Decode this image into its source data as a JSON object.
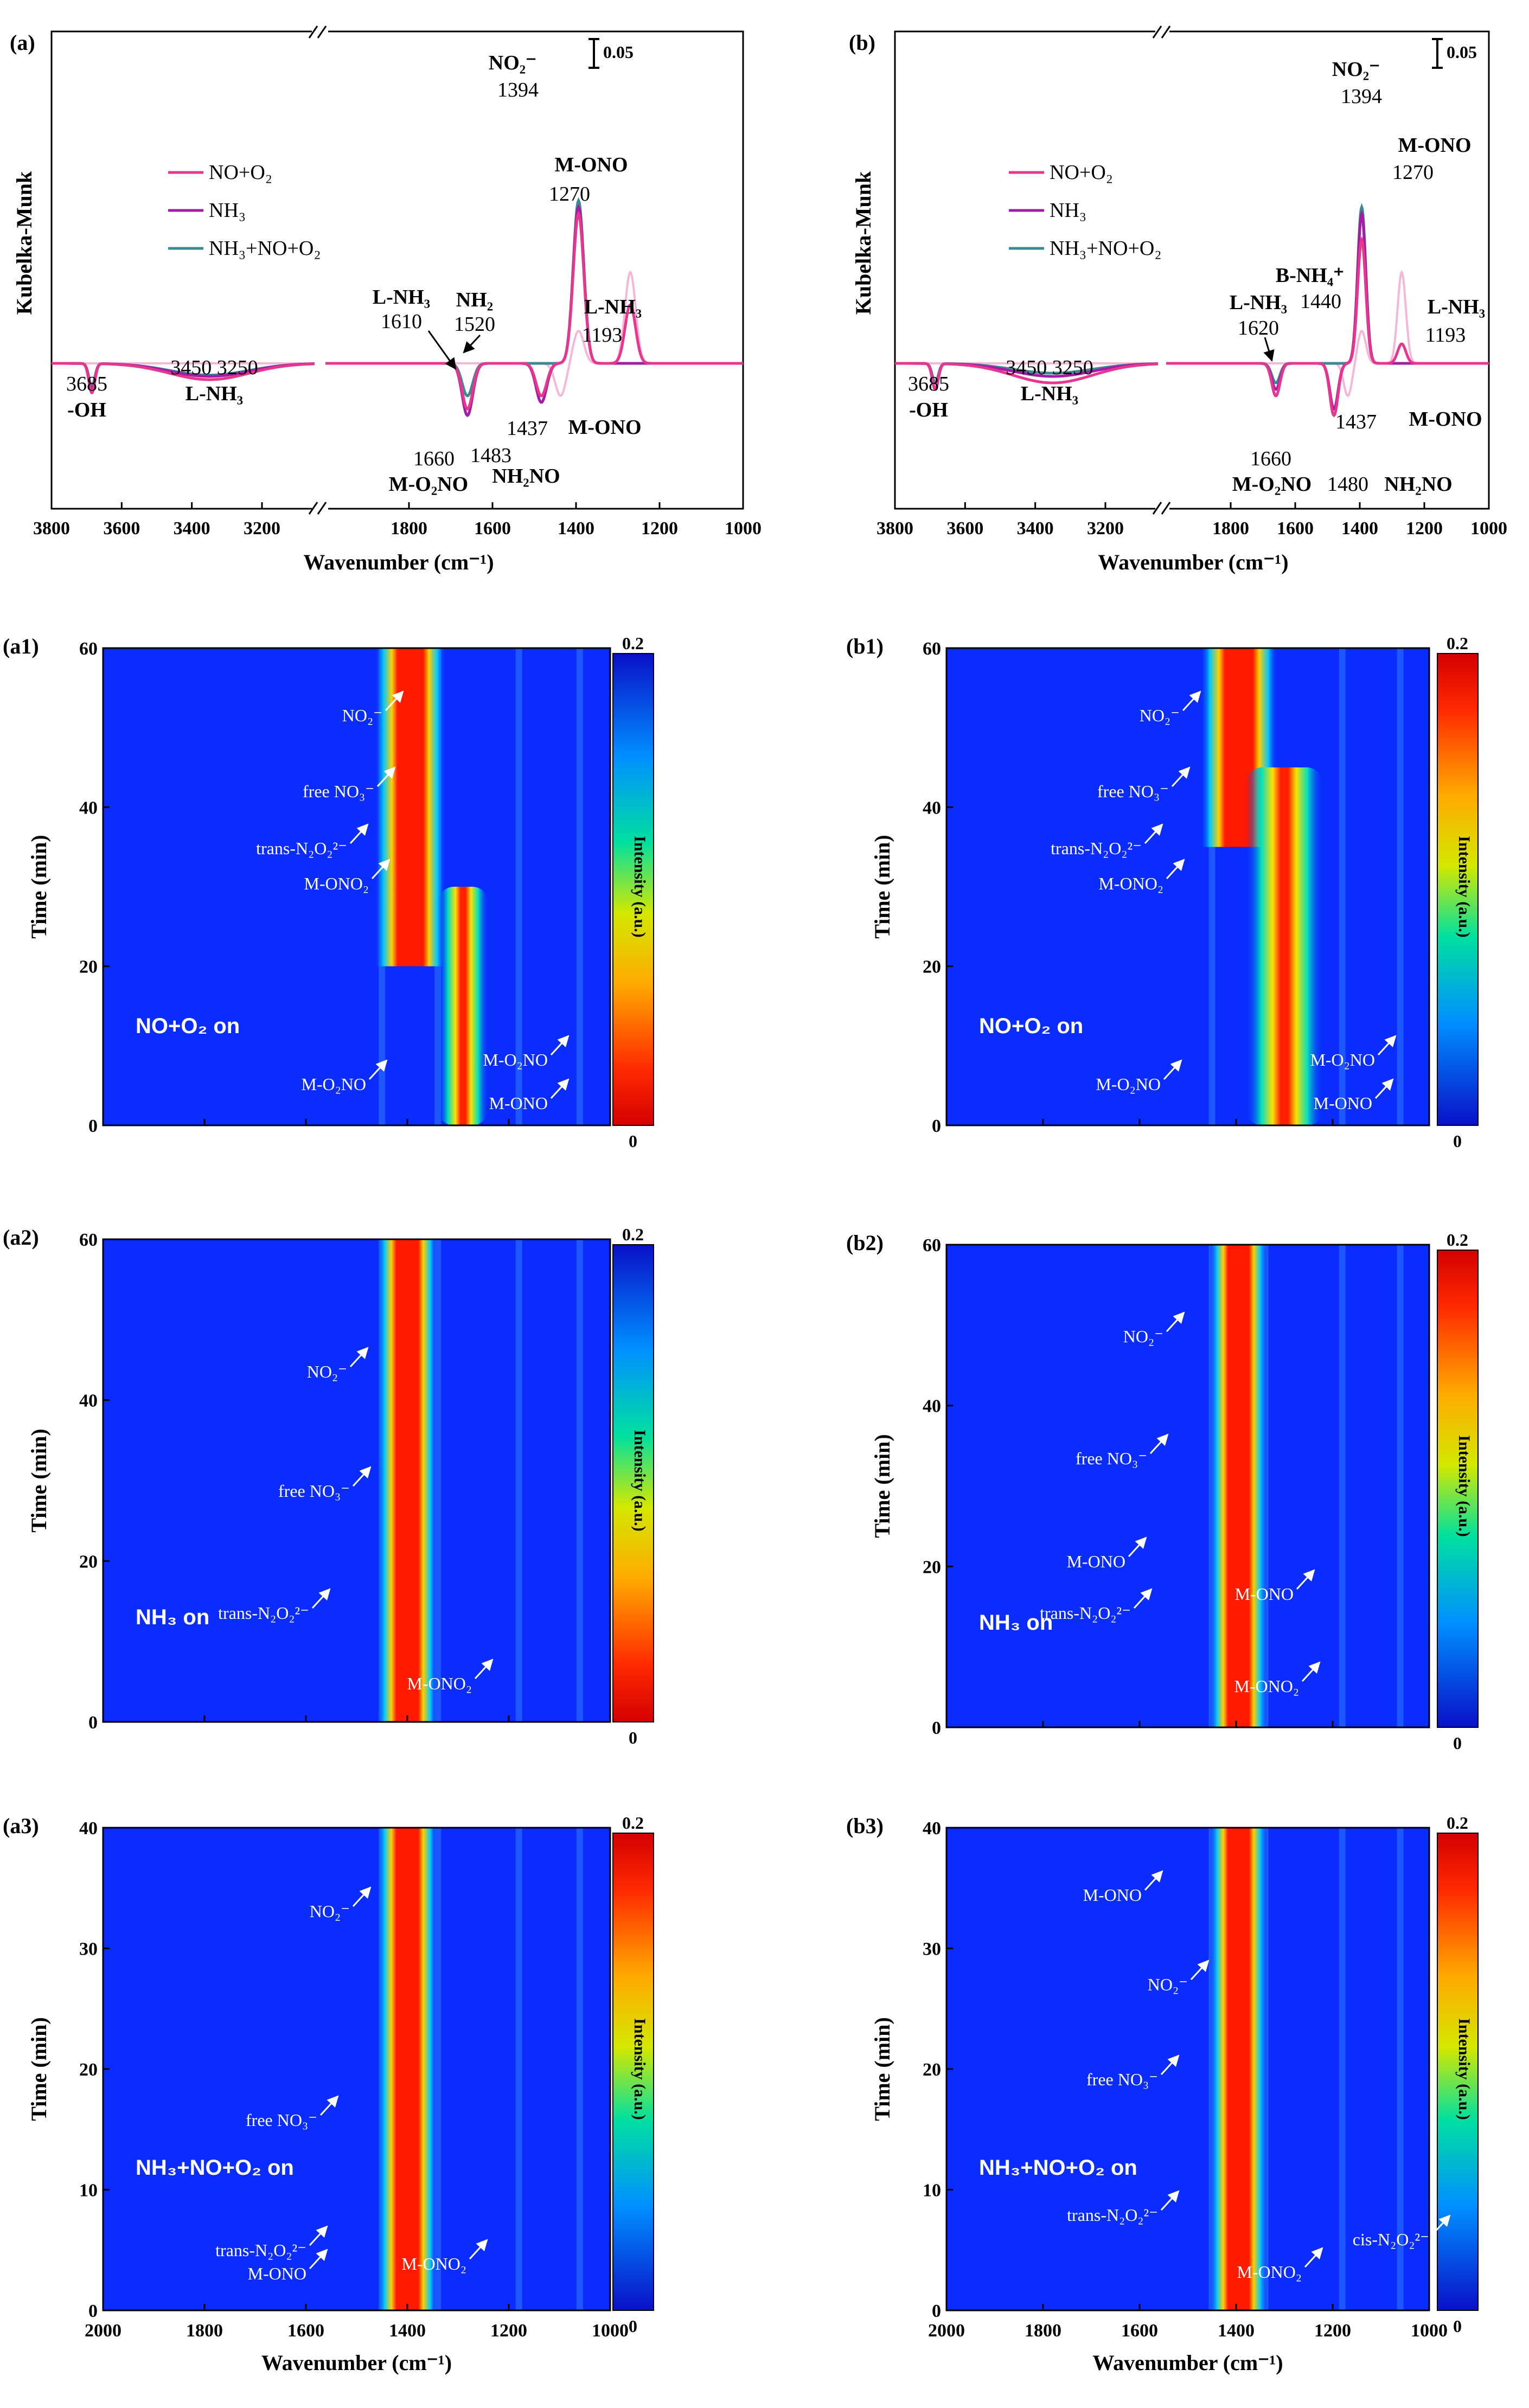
{
  "colors": {
    "no_o2": "#e8358e",
    "nh3": "#a51aa6",
    "nh3_no_o2": "#3a8a94",
    "pale": "#f6b7d6",
    "arrow": "#ffffff",
    "scalebar": "#000000"
  },
  "chart_data": [
    {
      "id": "a",
      "panel_label": "(a)",
      "type": "line",
      "xlabel": "Wavenumber (cm⁻¹)",
      "ylabel": "Kubelka-Munk",
      "x_ticks": [
        "3800",
        "3600",
        "3400",
        "3200",
        "1800",
        "1600",
        "1400",
        "1200",
        "1000"
      ],
      "x_segments": [
        [
          3800,
          3050
        ],
        [
          2000,
          1000
        ]
      ],
      "scale_label": "0.05",
      "legend": [
        "NO+O₂",
        "NH₃",
        "NH₃+NO+O₂"
      ],
      "series": [
        {
          "name": "NO+O₂",
          "color": "#e8358e",
          "peaks": [
            [
              3685,
              -0.045
            ],
            [
              3350,
              -0.025
            ],
            [
              1660,
              -0.07
            ],
            [
              1483,
              -0.05
            ],
            [
              1394,
              0.23
            ],
            [
              1270,
              0.09
            ]
          ]
        },
        {
          "name": "NH₃",
          "color": "#a51aa6",
          "peaks": [
            [
              3685,
              -0.04
            ],
            [
              3350,
              -0.02
            ],
            [
              1660,
              -0.08
            ],
            [
              1483,
              -0.06
            ],
            [
              1394,
              0.24
            ]
          ]
        },
        {
          "name": "NH₃+NO+O₂",
          "color": "#3a8a94",
          "peaks": [
            [
              3685,
              -0.035
            ],
            [
              3350,
              -0.018
            ],
            [
              1660,
              -0.05
            ],
            [
              1394,
              0.25
            ]
          ]
        }
      ],
      "annotations": [
        {
          "text": "NO₂⁻",
          "sub": "1394"
        },
        {
          "text": "M-ONO",
          "sub": "1270"
        },
        {
          "text": "L-NH₃",
          "sub": "1610"
        },
        {
          "text": "NH₂",
          "sub": "1520"
        },
        {
          "text": "L-NH₃",
          "sub": "1193"
        },
        {
          "text": "3685",
          "sub": "-OH"
        },
        {
          "text": "3450 3250",
          "sub": "L-NH₃"
        },
        {
          "text": "1660",
          "sub": "M-O₂NO"
        },
        {
          "text": "1483",
          "sub": ""
        },
        {
          "text": "1437",
          "sub": "NH₂NO"
        },
        {
          "text": "M-ONO",
          "sub": ""
        }
      ]
    },
    {
      "id": "b",
      "panel_label": "(b)",
      "type": "line",
      "xlabel": "Wavenumber (cm⁻¹)",
      "ylabel": "Kubelka-Munk",
      "x_ticks": [
        "3800",
        "3600",
        "3400",
        "3200",
        "1800",
        "1600",
        "1400",
        "1200",
        "1000"
      ],
      "x_segments": [
        [
          3800,
          3050
        ],
        [
          2000,
          1000
        ]
      ],
      "scale_label": "0.05",
      "legend": [
        "NO+O₂",
        "NH₃",
        "NH₃+NO+O₂"
      ],
      "series": [
        {
          "name": "NO+O₂",
          "color": "#e8358e",
          "peaks": [
            [
              3685,
              -0.04
            ],
            [
              3350,
              -0.03
            ],
            [
              1660,
              -0.05
            ],
            [
              1480,
              -0.08
            ],
            [
              1394,
              0.19
            ],
            [
              1270,
              0.03
            ]
          ]
        },
        {
          "name": "NH₃",
          "color": "#a51aa6",
          "peaks": [
            [
              3685,
              -0.04
            ],
            [
              3350,
              -0.02
            ],
            [
              1660,
              -0.04
            ],
            [
              1480,
              -0.07
            ],
            [
              1394,
              0.23
            ]
          ]
        },
        {
          "name": "NH₃+NO+O₂",
          "color": "#3a8a94",
          "peaks": [
            [
              3685,
              -0.03
            ],
            [
              3350,
              -0.015
            ],
            [
              1660,
              -0.03
            ],
            [
              1394,
              0.24
            ]
          ]
        }
      ],
      "annotations": [
        {
          "text": "NO₂⁻",
          "sub": "1394"
        },
        {
          "text": "M-ONO",
          "sub": "1270"
        },
        {
          "text": "B-NH₄⁺",
          "sub": "1440"
        },
        {
          "text": "L-NH₃",
          "sub": "1620"
        },
        {
          "text": "L-NH₃",
          "sub": "1193"
        },
        {
          "text": "3685",
          "sub": "-OH"
        },
        {
          "text": "3450 3250",
          "sub": "L-NH₃"
        },
        {
          "text": "1660",
          "sub": "M-O₂NO"
        },
        {
          "text": "1480",
          "sub": "NH₂NO"
        },
        {
          "text": "1437",
          "sub": "M-ONO"
        }
      ]
    },
    {
      "id": "a1",
      "panel_label": "(a1)",
      "type": "heatmap",
      "xlim": [
        2000,
        1000
      ],
      "ylim": [
        0,
        60
      ],
      "y_ticks": [
        "0",
        "20",
        "40",
        "60"
      ],
      "xlabel": "",
      "ylabel": "Time (min)",
      "colorbar_label": "Intensity (a.u.)",
      "colorbar_range": [
        "0",
        "0.2"
      ],
      "colorbar_reversed": true,
      "condition": "NO+O₂ on",
      "bands": [
        {
          "center": 1394,
          "width": 70,
          "t": [
            20,
            60
          ]
        },
        {
          "center": 1290,
          "width": 50,
          "t": [
            0,
            30
          ]
        }
      ],
      "annotations": [
        "NO₂⁻",
        "free NO₃⁻",
        "trans-N₂O₂²⁻",
        "M-ONO₂",
        "M-O₂NO",
        "M-O₂NO",
        "M-ONO"
      ]
    },
    {
      "id": "b1",
      "panel_label": "(b1)",
      "type": "heatmap",
      "xlim": [
        2000,
        1000
      ],
      "ylim": [
        0,
        60
      ],
      "y_ticks": [
        "0",
        "20",
        "40",
        "60"
      ],
      "xlabel": "",
      "ylabel": "Time (min)",
      "colorbar_label": "Intensity (a.u.)",
      "colorbar_range": [
        "0",
        "0.2"
      ],
      "colorbar_reversed": false,
      "condition": "NO+O₂ on",
      "bands": [
        {
          "center": 1394,
          "width": 80,
          "t": [
            35,
            60
          ]
        },
        {
          "center": 1300,
          "width": 80,
          "t": [
            0,
            45
          ]
        }
      ],
      "annotations": [
        "NO₂⁻",
        "free NO₃⁻",
        "trans-N₂O₂²⁻",
        "M-ONO₂",
        "M-O₂NO",
        "M-O₂NO",
        "M-ONO"
      ]
    },
    {
      "id": "a2",
      "panel_label": "(a2)",
      "type": "heatmap",
      "xlim": [
        2000,
        1000
      ],
      "ylim": [
        0,
        60
      ],
      "y_ticks": [
        "0",
        "20",
        "40",
        "60"
      ],
      "xlabel": "",
      "ylabel": "Time (min)",
      "colorbar_label": "Intensity (a.u.)",
      "colorbar_range": [
        "0",
        "0.2"
      ],
      "colorbar_reversed": true,
      "condition": "NH₃ on",
      "bands": [
        {
          "center": 1400,
          "width": 60,
          "t": [
            0,
            60
          ]
        }
      ],
      "annotations": [
        "NO₂⁻",
        "free NO₃⁻",
        "trans-N₂O₂²⁻",
        "M-ONO₂"
      ]
    },
    {
      "id": "b2",
      "panel_label": "(b2)",
      "type": "heatmap",
      "xlim": [
        2000,
        1000
      ],
      "ylim": [
        0,
        60
      ],
      "y_ticks": [
        "0",
        "20",
        "40",
        "60"
      ],
      "xlabel": "",
      "ylabel": "Time (min)",
      "colorbar_label": "Intensity (a.u.)",
      "colorbar_range": [
        "0",
        "0.2"
      ],
      "colorbar_reversed": false,
      "condition": "NH₃ on",
      "bands": [
        {
          "center": 1395,
          "width": 60,
          "t": [
            0,
            60
          ]
        }
      ],
      "annotations": [
        "NO₂⁻",
        "free NO₃⁻",
        "M-ONO",
        "trans-N₂O₂²⁻",
        "M-ONO",
        "M-ONO₂"
      ]
    },
    {
      "id": "a3",
      "panel_label": "(a3)",
      "type": "heatmap",
      "xlim": [
        2000,
        1000
      ],
      "ylim": [
        0,
        40
      ],
      "y_ticks": [
        "0",
        "10",
        "20",
        "30",
        "40"
      ],
      "xlabel": "Wavenumber (cm⁻¹)",
      "ylabel": "Time (min)",
      "colorbar_label": "Intensity (a.u.)",
      "colorbar_range": [
        "0",
        "0.2"
      ],
      "colorbar_reversed": false,
      "condition": "NH₃+NO+O₂ on",
      "bands": [
        {
          "center": 1400,
          "width": 60,
          "t": [
            0,
            40
          ]
        }
      ],
      "annotations": [
        "NO₂⁻",
        "free NO₃⁻",
        "trans-N₂O₂²⁻",
        "M-ONO",
        "M-ONO₂"
      ]
    },
    {
      "id": "b3",
      "panel_label": "(b3)",
      "type": "heatmap",
      "xlim": [
        2000,
        1000
      ],
      "ylim": [
        0,
        40
      ],
      "y_ticks": [
        "0",
        "10",
        "20",
        "30",
        "40"
      ],
      "xlabel": "Wavenumber (cm⁻¹)",
      "ylabel": "Time (min)",
      "colorbar_label": "Intensity (a.u.)",
      "colorbar_range": [
        "0",
        "0.2"
      ],
      "colorbar_reversed": false,
      "condition": "NH₃+NO+O₂ on",
      "bands": [
        {
          "center": 1395,
          "width": 60,
          "t": [
            0,
            40
          ]
        }
      ],
      "annotations": [
        "M-ONO",
        "NO₂⁻",
        "free NO₃⁻",
        "trans-N₂O₂²⁻",
        "M-ONO₂",
        "cis-N₂O₂²⁻"
      ]
    }
  ],
  "x_ticks_heatmap": [
    "2000",
    "1800",
    "1600",
    "1400",
    "1200",
    "1000"
  ]
}
